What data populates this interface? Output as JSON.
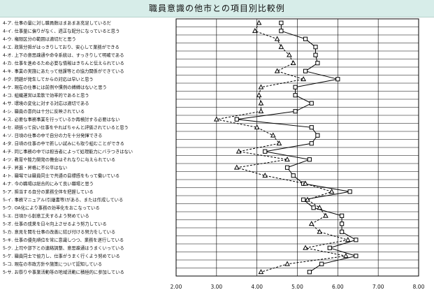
{
  "title": "職員意識の他市との項目別比較例",
  "chart_data": {
    "type": "line",
    "orientation": "horizontal",
    "xlim": [
      2.0,
      8.0
    ],
    "xticks": [
      "2.00",
      "3.00",
      "4.00",
      "5.00",
      "6.00",
      "7.00",
      "8.00"
    ],
    "grid": true,
    "categories": [
      "4-ア. 仕事の量に対し職員数はまあまあ充足しているだ",
      "4-イ. 仕事量に偏りがなく、適正な配分になっていると思う",
      "4-ウ. 権限区分の範囲は適切だと思う",
      "4-エ. 政策分担がはっきりしており、安心して業務ができる",
      "4-オ. 上下の意思疎通や命令系統は、すっきりして明確である",
      "4-カ. 仕事を進めるため必要な情報はきちんと伝えられている",
      "4-キ. 事業の実施にあたって他課等との協力関係ができている",
      "4-ク. 問題が発生してからの対応は早いと思う",
      "4-ケ. 現在の仕事には前例や慣例の縛縛はないと思う",
      "4-コ. 組織運営は柔軟で効率的であると思う",
      "4-サ. 環境の変化に対する対応は適切である",
      "4-シ. 職員の意向は十分に反映されている",
      "4-ス. 必要な事務事業を行っているか再検討する必要はない",
      "4-セ. 頑張って良い仕事をやればちゃんと評価されていると思う",
      "4-ソ. 日頃の仕事の中で自分の力を十分発揮できる",
      "4-タ. 日頃の仕事の中で新しい試みにも取り組むことができる",
      "4-チ. 同じ事務の中では担当者によって処理能力にバラつきはない",
      "4-ツ. 教育や能力開発の機会はそれなりに与えられている",
      "4-テ. 昇進・昇格に不公平はない",
      "4-ト. 職場では職員同士で共通の目標感をもって働いている",
      "4-ナ. 今の職場は総合的にみて良い職場と思う",
      "5-ア. 担当する自分の業務全体を把握している",
      "5-イ. 事務マニュアル(引継書等)がある、または作成している",
      "5-ウ. OA化により事務の効率化をおこなっている",
      "5-エ. 日頃から創意工夫するよう努めている",
      "5-オ. 仕事の成果を日々向上させるよう努力している",
      "5-カ. 意見を聞を仕事の改善に結び付ける努力をしている",
      "5-キ. 仕事の優先順位を常に意識しつつ、業務を遂行している",
      "5-ク. 上司や部下との連絡調整、意思疎通はうまくいっている",
      "5-ケ. 職員同士で協力し、仕事がうまく行くよう努めている",
      "5-コ. 現在の市政方針や施策について認知している",
      "5-サ. お祭りや事業活動等の地域活動に積極的に参加している"
    ],
    "series": [
      {
        "name": "",
        "color": "#000000",
        "marker": "square",
        "line": "solid",
        "values": [
          4.6,
          4.6,
          5.2,
          5.45,
          5.45,
          5.5,
          5.2,
          6.0,
          4.95,
          4.95,
          5.35,
          4.95,
          3.5,
          5.35,
          5.5,
          5.35,
          4.2,
          5.3,
          4.75,
          4.9,
          5.15,
          6.3,
          5.15,
          5.4,
          6.1,
          6.1,
          6.1,
          6.45,
          5.8,
          6.45,
          5.6,
          5.3
        ]
      },
      {
        "name": "",
        "color": "#000000",
        "marker": "triangle",
        "line": "dashed",
        "values": [
          4.05,
          3.95,
          4.5,
          4.6,
          4.8,
          4.9,
          4.5,
          5.15,
          4.1,
          4.05,
          4.1,
          4.1,
          3.0,
          4.0,
          4.4,
          4.55,
          3.55,
          4.75,
          3.5,
          4.2,
          5.2,
          5.85,
          5.25,
          5.55,
          5.7,
          5.35,
          5.55,
          6.25,
          5.2,
          6.2,
          4.75,
          4.1
        ]
      }
    ]
  }
}
